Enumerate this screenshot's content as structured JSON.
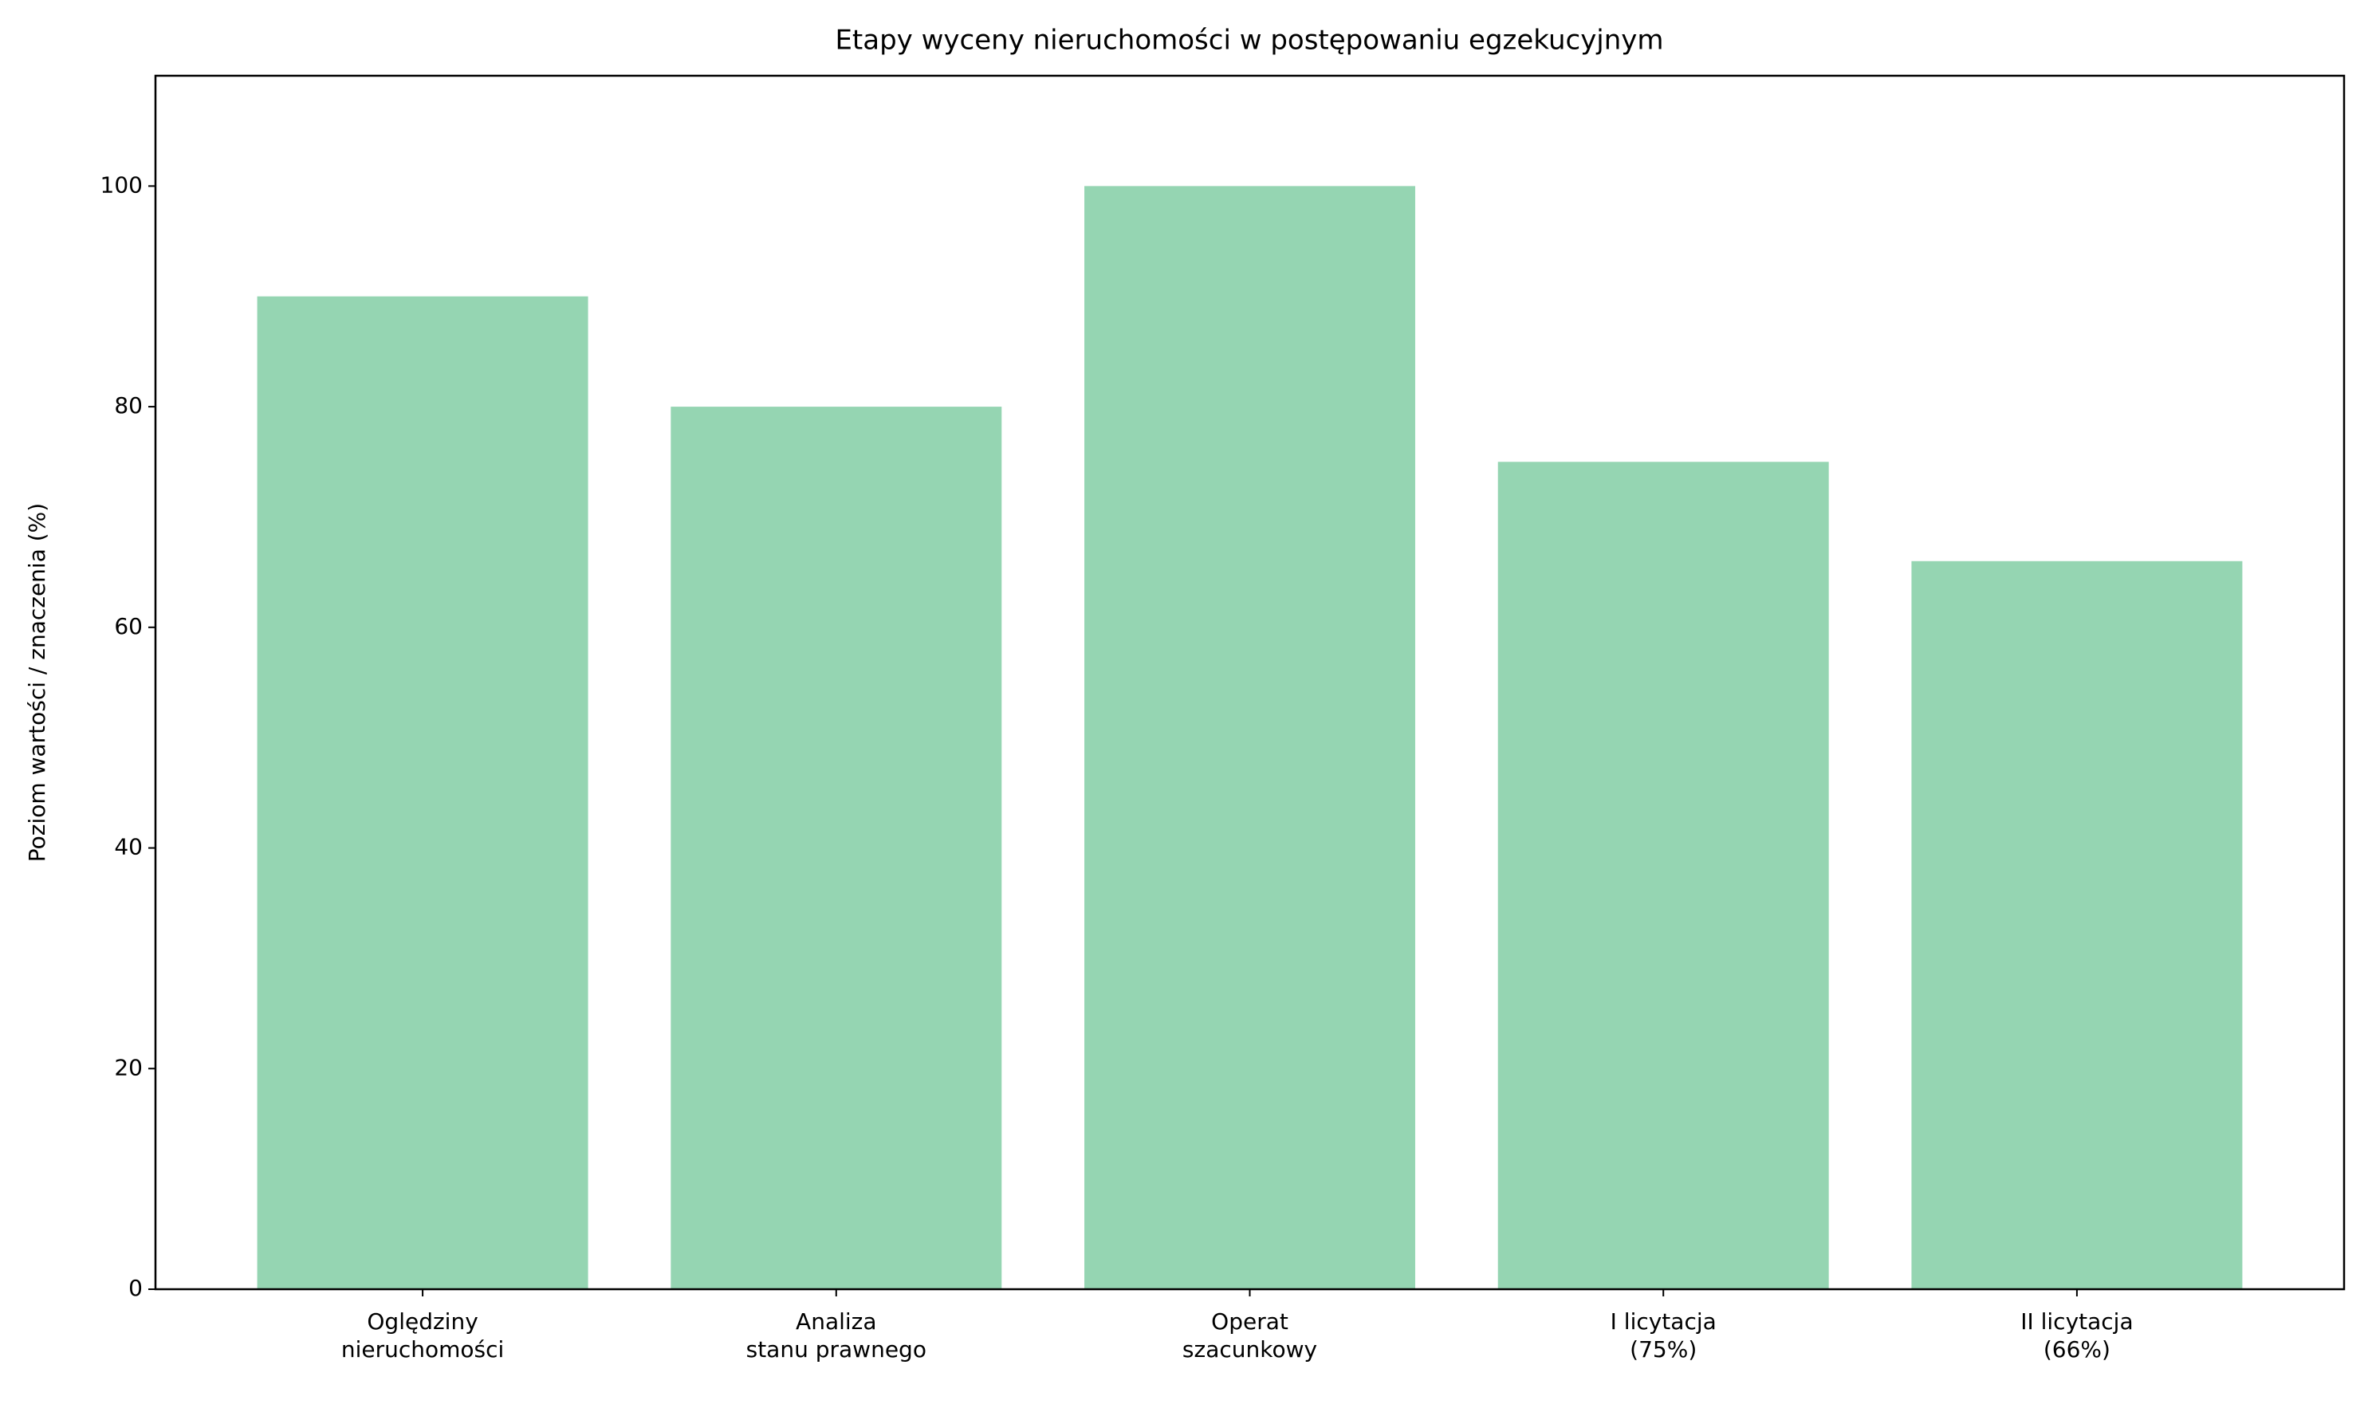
{
  "chart_data": {
    "type": "bar",
    "title": "Etapy wyceny nieruchomości w postępowaniu egzekucyjnym",
    "y_label": "Poziom wartości / znaczenia (%)",
    "categories": [
      "Oględziny\nnieruchomości",
      "Analiza\nstanu prawnego",
      "Operat\nszacunkowy",
      "I licytacja\n(75%)",
      "II licytacja\n(66%)"
    ],
    "values": [
      90,
      80,
      100,
      75,
      66
    ],
    "color": "#95d5b2",
    "ylim": [
      0,
      110
    ],
    "yticks": [
      0,
      20,
      40,
      60,
      80,
      100
    ],
    "grid": false
  }
}
